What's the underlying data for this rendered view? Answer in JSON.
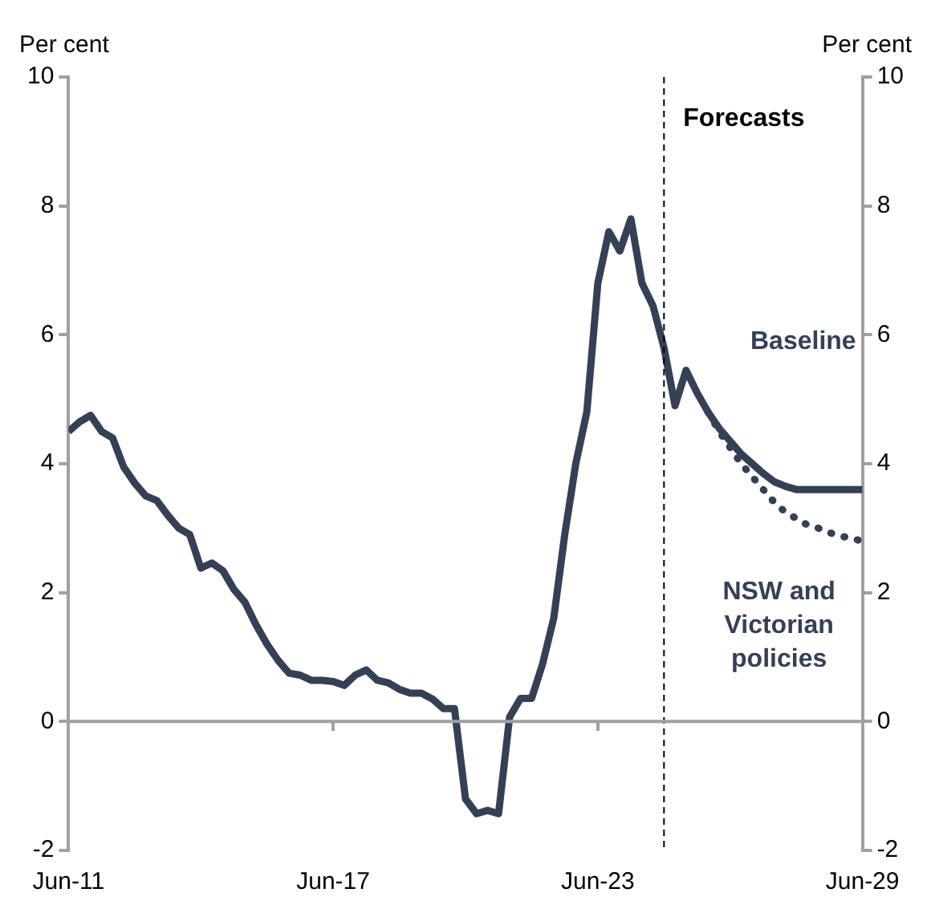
{
  "chart_data": {
    "type": "line",
    "ylabel": "Per cent",
    "y2label": "Per cent",
    "xlim": [
      "2011-06",
      "2029-06"
    ],
    "xticks": [
      {
        "value": "2011-06",
        "label": "Jun-11"
      },
      {
        "value": "2017-06",
        "label": "Jun-17"
      },
      {
        "value": "2023-06",
        "label": "Jun-23"
      },
      {
        "value": "2029-06",
        "label": "Jun-29"
      }
    ],
    "ylim": [
      -2,
      10
    ],
    "yticks": [
      -2,
      0,
      2,
      4,
      6,
      8,
      10
    ],
    "y2lim": [
      -2,
      10
    ],
    "y2ticks": [
      -2,
      0,
      2,
      4,
      6,
      8,
      10
    ],
    "grid": false,
    "legend": false,
    "marker": "none",
    "ref_lines": [
      {
        "axis": "x",
        "value": "2024-12",
        "label": "Forecasts",
        "line_style": "dashed",
        "color": "#000000"
      },
      {
        "axis": "y",
        "value": 0,
        "line_style": "solid",
        "color": "#a0a0a0"
      }
    ],
    "series": [
      {
        "name": "Baseline",
        "color": "#344055",
        "line_style": "solid",
        "x": [
          "2011-06",
          "2011-09",
          "2011-12",
          "2012-03",
          "2012-06",
          "2012-09",
          "2012-12",
          "2013-03",
          "2013-06",
          "2013-09",
          "2013-12",
          "2014-03",
          "2014-06",
          "2014-09",
          "2014-12",
          "2015-03",
          "2015-06",
          "2015-09",
          "2015-12",
          "2016-03",
          "2016-06",
          "2016-09",
          "2016-12",
          "2017-03",
          "2017-06",
          "2017-09",
          "2017-12",
          "2018-03",
          "2018-06",
          "2018-09",
          "2018-12",
          "2019-03",
          "2019-06",
          "2019-09",
          "2019-12",
          "2020-03",
          "2020-06",
          "2020-09",
          "2020-12",
          "2021-03",
          "2021-06",
          "2021-09",
          "2021-12",
          "2022-03",
          "2022-06",
          "2022-09",
          "2022-12",
          "2023-03",
          "2023-06",
          "2023-09",
          "2023-12",
          "2024-03",
          "2024-06",
          "2024-09",
          "2024-12",
          "2025-03",
          "2025-06",
          "2025-09",
          "2025-12",
          "2026-03",
          "2026-06",
          "2026-09",
          "2026-12",
          "2027-03",
          "2027-06",
          "2027-09",
          "2027-12",
          "2028-03",
          "2028-06",
          "2028-09",
          "2028-12",
          "2029-03",
          "2029-06"
        ],
        "values": [
          4.5,
          4.65,
          4.75,
          4.5,
          4.4,
          3.95,
          3.7,
          3.5,
          3.43,
          3.2,
          3.0,
          2.9,
          2.38,
          2.46,
          2.34,
          2.05,
          1.85,
          1.5,
          1.2,
          0.95,
          0.75,
          0.72,
          0.64,
          0.64,
          0.62,
          0.56,
          0.72,
          0.8,
          0.64,
          0.6,
          0.5,
          0.44,
          0.44,
          0.35,
          0.2,
          0.2,
          -1.2,
          -1.43,
          -1.38,
          -1.43,
          0.07,
          0.36,
          0.36,
          0.9,
          1.6,
          2.9,
          4.0,
          4.8,
          6.8,
          7.6,
          7.3,
          7.8,
          6.8,
          6.45,
          5.8,
          4.9,
          5.45,
          5.1,
          4.8,
          4.55,
          4.35,
          4.15,
          4.0,
          3.85,
          3.72,
          3.65,
          3.6,
          3.6,
          3.6,
          3.6,
          3.6,
          3.6,
          3.6
        ]
      },
      {
        "name": "NSW and Victorian policies",
        "color": "#344055",
        "line_style": "dotted",
        "x": [
          "2025-12",
          "2026-03",
          "2026-06",
          "2026-09",
          "2026-12",
          "2027-03",
          "2027-06",
          "2027-09",
          "2027-12",
          "2028-03",
          "2028-06",
          "2028-09",
          "2028-12",
          "2029-03",
          "2029-06"
        ],
        "values": [
          4.8,
          4.5,
          4.25,
          4.0,
          3.8,
          3.6,
          3.4,
          3.25,
          3.15,
          3.05,
          3.0,
          2.93,
          2.88,
          2.84,
          2.8
        ]
      }
    ]
  }
}
